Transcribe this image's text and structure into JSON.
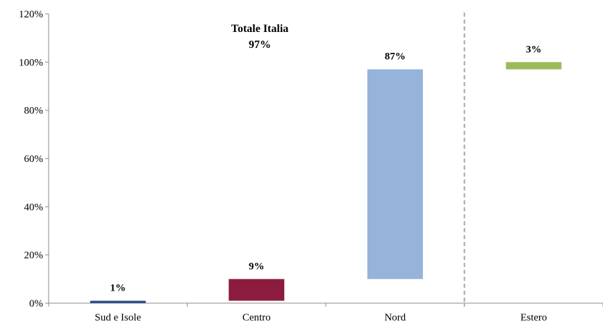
{
  "chart_data": {
    "type": "waterfall",
    "categories": [
      "Sud e Isole",
      "Centro",
      "Nord",
      "Estero"
    ],
    "series": [
      {
        "values": [
          1,
          9,
          87,
          3
        ],
        "cumulative_start": [
          0,
          1,
          10,
          97
        ],
        "cumulative_end": [
          1,
          10,
          97,
          100
        ],
        "labels": [
          "1%",
          "9%",
          "87%",
          "3%"
        ],
        "colors": [
          "#2F4F8A",
          "#8C1C3E",
          "#96B3D9",
          "#9BBB59"
        ]
      }
    ],
    "ylim": [
      0,
      120
    ],
    "yticks": [
      0,
      20,
      40,
      60,
      80,
      100,
      120
    ],
    "ytick_labels": [
      "0%",
      "20%",
      "40%",
      "60%",
      "80%",
      "100%",
      "120%"
    ],
    "annotation": {
      "title": "Totale Italia",
      "value": "97%"
    },
    "separator": {
      "between": [
        "Nord",
        "Estero"
      ],
      "style": "dashed",
      "color": "#A6A6A6"
    },
    "grid": false,
    "legend": "none",
    "xlabel": "",
    "ylabel": ""
  }
}
